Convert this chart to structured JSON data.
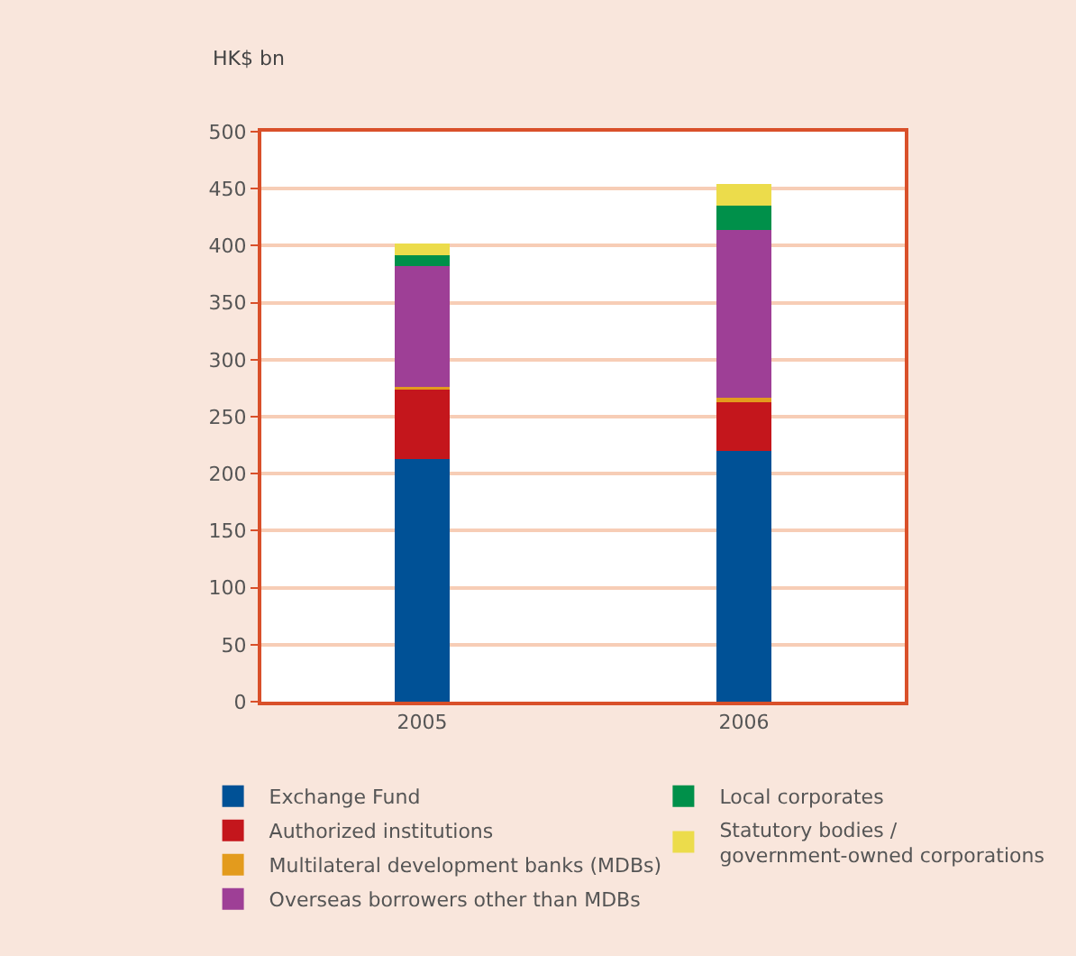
{
  "chart_data": {
    "type": "bar",
    "stacked": true,
    "ylabel": "HK$ bn",
    "categories": [
      "2005",
      "2006"
    ],
    "series": [
      {
        "name": "Exchange Fund",
        "color": "#005196",
        "values": [
          213,
          220
        ]
      },
      {
        "name": "Authorized institutions",
        "color": "#c4161c",
        "values": [
          62,
          44
        ]
      },
      {
        "name": "Multilateral development banks (MDBs)",
        "color": "#e39b1d",
        "values": [
          1,
          3
        ]
      },
      {
        "name": "Overseas borrowers other than MDBs",
        "color": "#9e3f96",
        "values": [
          106,
          147
        ]
      },
      {
        "name": "Local corporates",
        "color": "#00904a",
        "values": [
          10,
          21
        ]
      },
      {
        "name": "Statutory bodies /\ngovernment-owned corporations",
        "color": "#ecdc4b",
        "values": [
          10,
          19
        ]
      }
    ],
    "ylim": [
      0,
      500
    ],
    "yticks": [
      0,
      50,
      100,
      150,
      200,
      250,
      300,
      350,
      400,
      450,
      500
    ],
    "grid": "y",
    "legend": "bottom"
  }
}
